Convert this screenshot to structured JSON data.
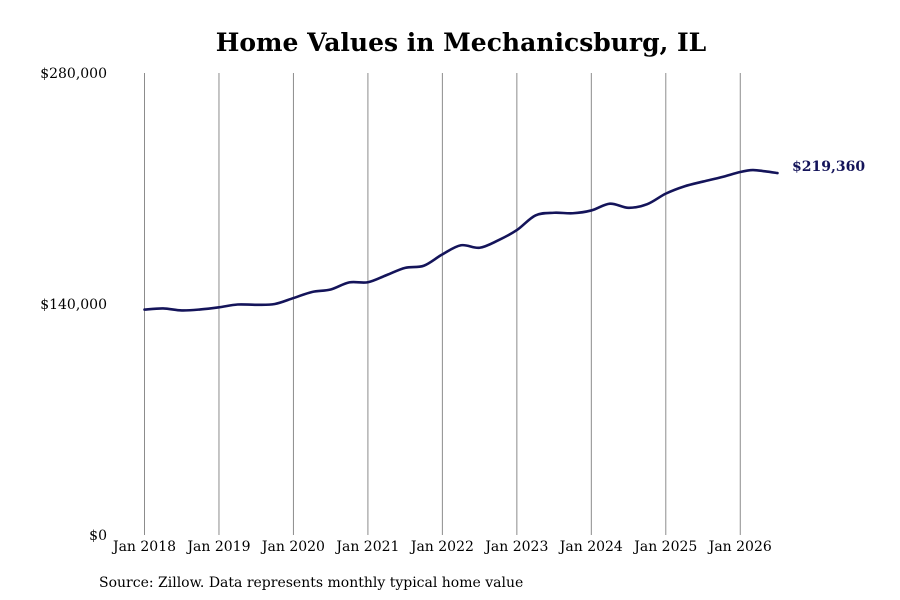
{
  "chart_data": {
    "type": "line",
    "title": "Home Values in Mechanicsburg, IL",
    "source": "Source: Zillow. Data represents monthly typical home value",
    "xlabel": "",
    "ylabel": "",
    "ylim": [
      0,
      280000
    ],
    "y_ticks": [
      0,
      140000,
      280000
    ],
    "y_tick_labels": [
      "$0",
      "$140,000",
      "$280,000"
    ],
    "x_range": [
      "2018-01",
      "2026-07"
    ],
    "x_ticks": [
      "2018-01",
      "2019-01",
      "2020-01",
      "2021-01",
      "2022-01",
      "2023-01",
      "2024-01",
      "2025-01",
      "2026-01"
    ],
    "x_tick_labels": [
      "Jan 2018",
      "Jan 2019",
      "Jan 2020",
      "Jan 2021",
      "Jan 2022",
      "Jan 2023",
      "Jan 2024",
      "Jan 2025",
      "Jan 2026"
    ],
    "grid": "vertical",
    "line_color": "#14145a",
    "end_label": "$219,360",
    "series": [
      {
        "x": [
          "2018-01",
          "2018-04",
          "2018-07",
          "2018-10",
          "2019-01",
          "2019-04",
          "2019-07",
          "2019-10",
          "2020-01",
          "2020-04",
          "2020-07",
          "2020-10",
          "2021-01",
          "2021-04",
          "2021-07",
          "2021-10",
          "2022-01",
          "2022-04",
          "2022-07",
          "2022-10",
          "2023-01",
          "2023-04",
          "2023-07",
          "2023-10",
          "2024-01",
          "2024-04",
          "2024-07",
          "2024-10",
          "2025-01",
          "2025-04",
          "2025-07",
          "2025-10",
          "2026-01",
          "2026-03",
          "2026-05",
          "2026-07"
        ],
        "values": [
          136600,
          137300,
          136100,
          136700,
          138000,
          139700,
          139500,
          140000,
          143600,
          147300,
          148800,
          153100,
          153200,
          157500,
          161900,
          163200,
          170100,
          175600,
          174100,
          178600,
          184800,
          193700,
          195300,
          195000,
          196700,
          200800,
          198300,
          200500,
          206900,
          211300,
          214200,
          216900,
          220000,
          221200,
          220400,
          219360
        ]
      }
    ]
  }
}
